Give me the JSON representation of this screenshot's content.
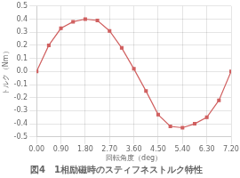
{
  "chart_data": {
    "type": "line",
    "title": "図4　1相励磁時のスティフネストルク特性",
    "xlabel": "回転角度（deg）",
    "ylabel": "トルク（Nm）",
    "x": [
      0.0,
      0.45,
      0.9,
      1.35,
      1.8,
      2.25,
      2.7,
      3.15,
      3.6,
      4.05,
      4.5,
      4.95,
      5.4,
      5.85,
      6.3,
      6.75,
      7.2
    ],
    "values": [
      0.0,
      0.2,
      0.33,
      0.38,
      0.4,
      0.39,
      0.31,
      0.18,
      0.02,
      -0.15,
      -0.33,
      -0.42,
      -0.43,
      -0.4,
      -0.35,
      -0.22,
      0.0
    ],
    "color": "#d06060",
    "marker": "square",
    "xlim": [
      0.0,
      7.2
    ],
    "ylim": [
      -0.5,
      0.5
    ],
    "xticks": [
      {
        "value": 0.0,
        "label": "0.00"
      },
      {
        "value": 0.9,
        "label": "0.90"
      },
      {
        "value": 1.8,
        "label": "1.80"
      },
      {
        "value": 2.7,
        "label": "2.70"
      },
      {
        "value": 3.6,
        "label": "3.60"
      },
      {
        "value": 4.5,
        "label": "4.50"
      },
      {
        "value": 5.4,
        "label": "5.40"
      },
      {
        "value": 6.3,
        "label": "6.30"
      },
      {
        "value": 7.2,
        "label": "7.20"
      }
    ],
    "yticks": [
      -0.5,
      -0.4,
      -0.3,
      -0.2,
      -0.1,
      {
        "value": 0.0,
        "label": "0.0"
      },
      0.1,
      0.2,
      0.3,
      0.4,
      0.5
    ],
    "grid": true
  }
}
